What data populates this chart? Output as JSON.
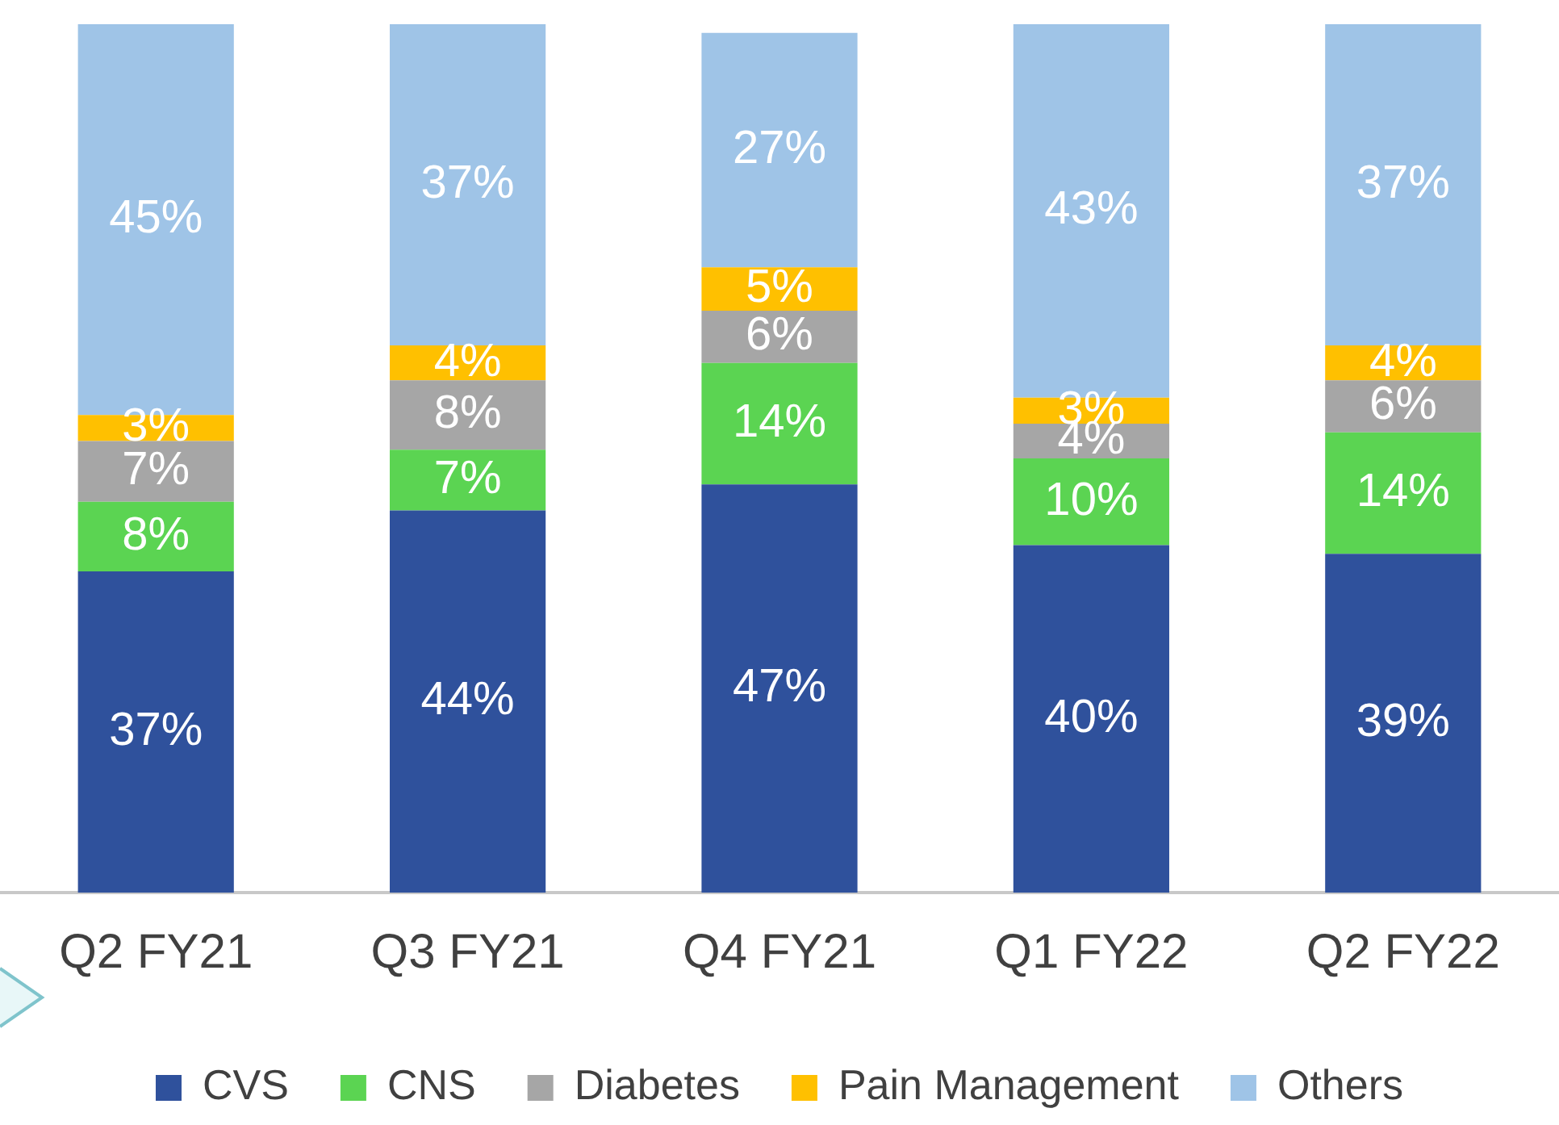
{
  "chart_data": {
    "type": "bar",
    "stacked": true,
    "categories": [
      "Q2 FY21",
      "Q3 FY21",
      "Q4 FY21",
      "Q1 FY22",
      "Q2 FY22"
    ],
    "series": [
      {
        "name": "CVS",
        "color": "#2f519c",
        "values": [
          37,
          44,
          47,
          40,
          39
        ],
        "value_labels": [
          "37%",
          "44%",
          "47%",
          "40%",
          "39%"
        ]
      },
      {
        "name": "CNS",
        "color": "#5bd452",
        "values": [
          8,
          7,
          14,
          10,
          14
        ],
        "value_labels": [
          "8%",
          "7%",
          "14%",
          "10%",
          "14%"
        ]
      },
      {
        "name": "Diabetes",
        "color": "#a6a6a6",
        "values": [
          7,
          8,
          6,
          4,
          6
        ],
        "value_labels": [
          "7%",
          "8%",
          "6%",
          "4%",
          "6%"
        ]
      },
      {
        "name": "Pain Management",
        "color": "#ffc000",
        "values": [
          3,
          4,
          5,
          3,
          4
        ],
        "value_labels": [
          "3%",
          "4%",
          "5%",
          "3%",
          "4%"
        ]
      },
      {
        "name": "Others",
        "color": "#9fc4e7",
        "values": [
          45,
          37,
          27,
          43,
          37
        ],
        "value_labels": [
          "45%",
          "37%",
          "27%",
          "43%",
          "37%"
        ]
      }
    ],
    "legend": "bottom",
    "tick_labels": "x"
  }
}
